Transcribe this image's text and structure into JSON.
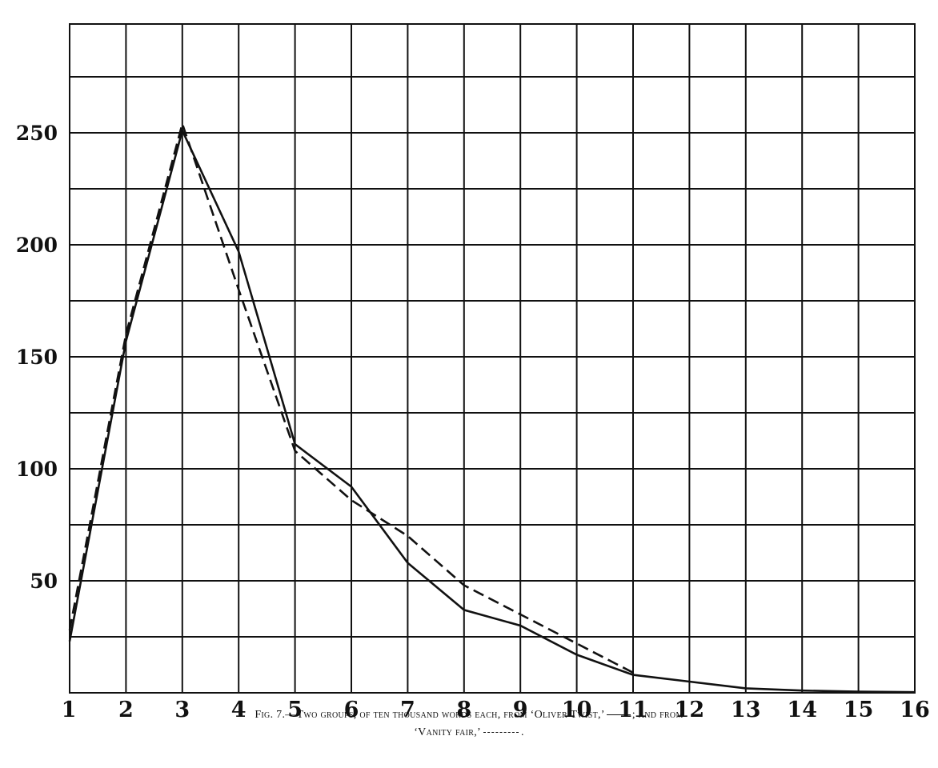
{
  "chart_data": {
    "type": "line",
    "title": "",
    "xlabel": "",
    "ylabel": "",
    "x": [
      1,
      2,
      3,
      4,
      5,
      6,
      7,
      8,
      9,
      10,
      11,
      12,
      13,
      14,
      15,
      16
    ],
    "xlim": [
      1,
      16
    ],
    "ylim": [
      0,
      300
    ],
    "x_ticks": [
      1,
      2,
      3,
      4,
      5,
      6,
      7,
      8,
      9,
      10,
      11,
      12,
      13,
      14,
      15,
      16
    ],
    "y_tick_labels": [
      50,
      100,
      150,
      200,
      250
    ],
    "y_gridlines": [
      25,
      50,
      75,
      100,
      125,
      150,
      175,
      200,
      225,
      250,
      275,
      300
    ],
    "grid": true,
    "legend": "in caption",
    "series": [
      {
        "style": "solid",
        "values": [
          23,
          157,
          251,
          197,
          111,
          92,
          58,
          37,
          30,
          17,
          8,
          5,
          2,
          1,
          0.5,
          0.3
        ]
      },
      {
        "style": "dashed",
        "x": [
          1,
          2,
          3,
          4,
          5,
          6,
          7,
          8,
          9,
          10,
          11
        ],
        "values": [
          28,
          160,
          254,
          180,
          108,
          86,
          70,
          48,
          35,
          22,
          9
        ]
      }
    ]
  },
  "caption": {
    "line1_a": "Fig. 7.—Two groups, of ten thousand words each, from ‘Oliver Twist,’",
    "line1_b": "; and from",
    "line2_a": "‘Vanity fair,’",
    "line2_b": "."
  }
}
